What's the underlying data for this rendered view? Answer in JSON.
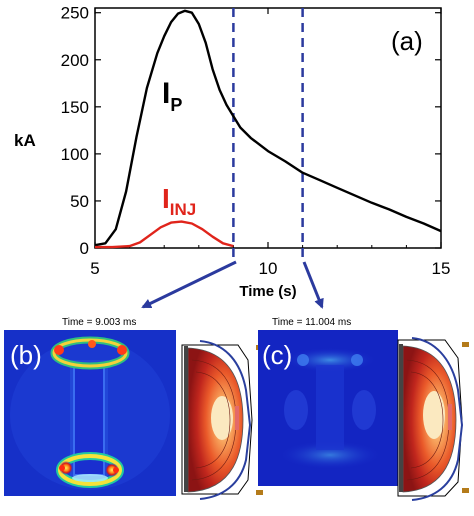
{
  "chart_data": {
    "type": "line",
    "panel_label": "(a)",
    "xlabel": "Time (s)",
    "ylabel": "kA",
    "xlim": [
      5,
      15
    ],
    "ylim": [
      0,
      255
    ],
    "xticks": [
      5,
      10,
      15
    ],
    "yticks": [
      0,
      50,
      100,
      150,
      200,
      250
    ],
    "series": [
      {
        "name": "I_P",
        "label_main": "I",
        "label_sub": "P",
        "color": "#000000",
        "x": [
          5.0,
          5.3,
          5.6,
          5.9,
          6.2,
          6.5,
          6.8,
          7.0,
          7.2,
          7.4,
          7.6,
          7.8,
          8.0,
          8.2,
          8.4,
          8.6,
          8.8,
          9.0,
          9.2,
          9.5,
          10.0,
          10.5,
          11.0,
          11.5,
          12.0,
          12.5,
          13.0,
          13.5,
          14.0,
          14.5,
          15.0
        ],
        "y": [
          3,
          5,
          20,
          60,
          118,
          170,
          207,
          225,
          240,
          249,
          252,
          250,
          238,
          218,
          190,
          168,
          152,
          140,
          128,
          117,
          103,
          92,
          80,
          72,
          64,
          56,
          48,
          41,
          33,
          26,
          18
        ]
      },
      {
        "name": "I_INJ",
        "label_main": "I",
        "label_sub": "INJ",
        "color": "#e0241b",
        "x": [
          5.0,
          5.5,
          6.0,
          6.3,
          6.6,
          6.9,
          7.2,
          7.5,
          7.8,
          8.1,
          8.4,
          8.7,
          9.0
        ],
        "y": [
          1,
          1,
          2,
          6,
          14,
          22,
          27,
          28,
          26,
          20,
          12,
          5,
          2
        ]
      }
    ],
    "markers": [
      {
        "x": 9.0,
        "style": "dashed",
        "color": "#2b3a9e"
      },
      {
        "x": 11.0,
        "style": "dashed",
        "color": "#2b3a9e"
      }
    ]
  },
  "panels": [
    {
      "label": "(b)",
      "time_text": "Time =  9.003 ms"
    },
    {
      "label": "(c)",
      "time_text": "Time = 11.004 ms"
    }
  ]
}
